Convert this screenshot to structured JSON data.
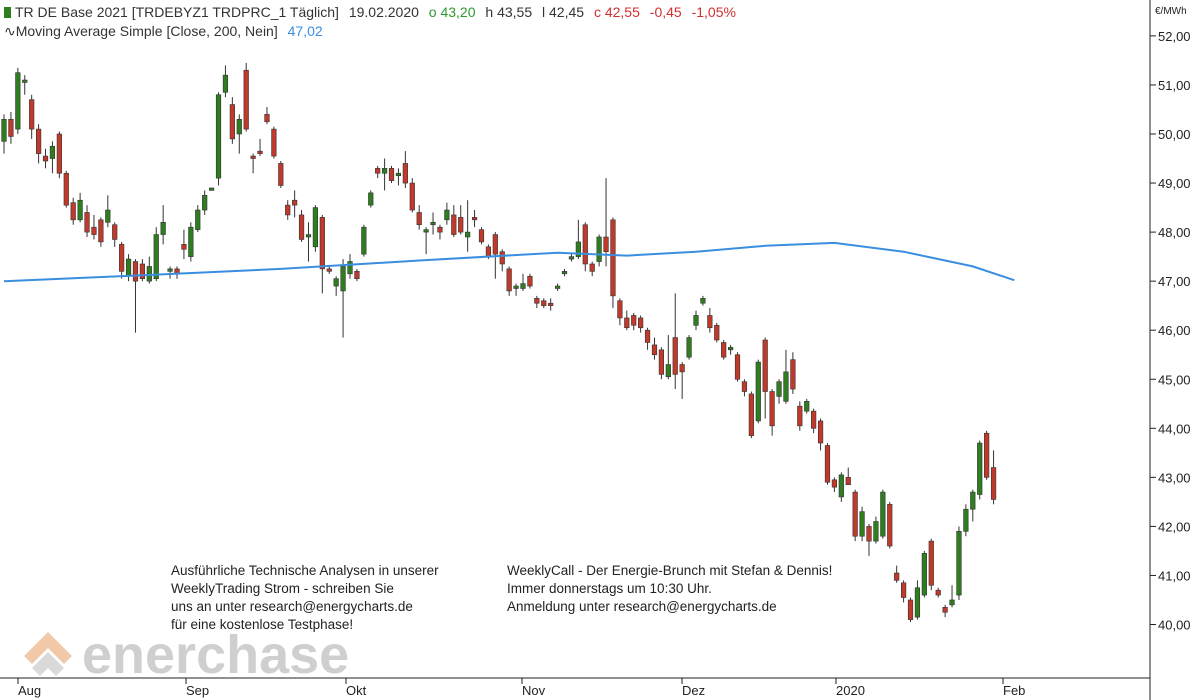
{
  "header": {
    "symbol_label": "TR DE Base 2021 [TRDEBYZ1 TRDPRC_1 Täglich]",
    "date": "19.02.2020",
    "open": "o 43,20",
    "high": "h 43,55",
    "low": "l 42,45",
    "close": "c 42,55",
    "change": "-0,45",
    "change_pct": "-1,05%",
    "ma_label": "Moving Average Simple  [Close, 200, Nein]",
    "ma_value": "47,02"
  },
  "colors": {
    "up": "#2e7d1f",
    "down": "#c0392b",
    "ma": "#3a8ee0",
    "open": "#2e9a2e",
    "neg": "#d03030"
  },
  "annotations": {
    "left": [
      "Ausführliche Technische Analysen in unserer",
      "WeeklyTrading Strom - schreiben Sie",
      "uns an unter research@energycharts.de",
      "für eine kostenlose Testphase!"
    ],
    "right": [
      "WeeklyCall - Der Energie-Brunch mit Stefan & Dennis!",
      "Immer donnerstags um 10:30 Uhr.",
      "Anmeldung unter research@energycharts.de"
    ]
  },
  "logo": {
    "text": "enerchase"
  },
  "chart_data": {
    "type": "candlestick",
    "unit": "€/MWh",
    "ylim": [
      39.3,
      52.4
    ],
    "y_ticks": [
      "40,00",
      "41,00",
      "42,00",
      "43,00",
      "44,00",
      "45,00",
      "46,00",
      "47,00",
      "48,00",
      "49,00",
      "50,00",
      "51,00",
      "52,00"
    ],
    "x_ticks": [
      "Aug",
      "Sep",
      "Okt",
      "Nov",
      "Dez",
      "2020",
      "Feb"
    ],
    "candles": [
      {
        "o": 49.85,
        "h": 50.4,
        "l": 49.6,
        "c": 50.3
      },
      {
        "o": 50.3,
        "h": 50.45,
        "l": 49.8,
        "c": 49.95
      },
      {
        "o": 50.1,
        "h": 51.35,
        "l": 50.0,
        "c": 51.25
      },
      {
        "o": 51.05,
        "h": 51.2,
        "l": 50.8,
        "c": 51.1
      },
      {
        "o": 50.7,
        "h": 50.8,
        "l": 49.9,
        "c": 50.1
      },
      {
        "o": 50.1,
        "h": 50.2,
        "l": 49.4,
        "c": 49.6
      },
      {
        "o": 49.55,
        "h": 49.7,
        "l": 49.3,
        "c": 49.45
      },
      {
        "o": 49.5,
        "h": 49.85,
        "l": 49.2,
        "c": 49.75
      },
      {
        "o": 50.0,
        "h": 50.05,
        "l": 49.1,
        "c": 49.2
      },
      {
        "o": 49.2,
        "h": 49.25,
        "l": 48.5,
        "c": 48.55
      },
      {
        "o": 48.6,
        "h": 48.7,
        "l": 48.15,
        "c": 48.25
      },
      {
        "o": 48.25,
        "h": 48.8,
        "l": 48.2,
        "c": 48.65
      },
      {
        "o": 48.4,
        "h": 48.55,
        "l": 47.9,
        "c": 48.0
      },
      {
        "o": 48.1,
        "h": 48.35,
        "l": 47.85,
        "c": 47.95
      },
      {
        "o": 48.25,
        "h": 48.3,
        "l": 47.7,
        "c": 47.8
      },
      {
        "o": 48.2,
        "h": 48.75,
        "l": 48.1,
        "c": 48.45
      },
      {
        "o": 48.15,
        "h": 48.2,
        "l": 47.7,
        "c": 47.85
      },
      {
        "o": 47.75,
        "h": 47.8,
        "l": 47.05,
        "c": 47.2
      },
      {
        "o": 47.1,
        "h": 47.55,
        "l": 47.0,
        "c": 47.45
      },
      {
        "o": 47.4,
        "h": 47.45,
        "l": 45.95,
        "c": 47.0
      },
      {
        "o": 47.35,
        "h": 47.45,
        "l": 47.0,
        "c": 47.05
      },
      {
        "o": 47.0,
        "h": 47.5,
        "l": 46.95,
        "c": 47.3
      },
      {
        "o": 47.05,
        "h": 48.1,
        "l": 47.0,
        "c": 47.95
      },
      {
        "o": 47.95,
        "h": 48.55,
        "l": 47.75,
        "c": 48.2
      },
      {
        "o": 47.2,
        "h": 47.3,
        "l": 47.05,
        "c": 47.25
      },
      {
        "o": 47.25,
        "h": 47.3,
        "l": 47.05,
        "c": 47.15
      },
      {
        "o": 47.75,
        "h": 48.05,
        "l": 47.45,
        "c": 47.65
      },
      {
        "o": 47.5,
        "h": 48.2,
        "l": 47.4,
        "c": 48.1
      },
      {
        "o": 48.05,
        "h": 48.55,
        "l": 48.0,
        "c": 48.45
      },
      {
        "o": 48.45,
        "h": 48.85,
        "l": 48.35,
        "c": 48.75
      },
      {
        "o": 48.85,
        "h": 48.9,
        "l": 48.85,
        "c": 48.9
      },
      {
        "o": 49.1,
        "h": 50.85,
        "l": 48.95,
        "c": 50.8
      },
      {
        "o": 50.85,
        "h": 51.4,
        "l": 50.75,
        "c": 51.2
      },
      {
        "o": 50.6,
        "h": 50.75,
        "l": 49.8,
        "c": 49.9
      },
      {
        "o": 50.0,
        "h": 50.4,
        "l": 49.6,
        "c": 50.3
      },
      {
        "o": 51.3,
        "h": 51.45,
        "l": 50.05,
        "c": 50.1
      },
      {
        "o": 49.55,
        "h": 49.6,
        "l": 49.2,
        "c": 49.5
      },
      {
        "o": 49.65,
        "h": 49.9,
        "l": 49.55,
        "c": 49.6
      },
      {
        "o": 50.4,
        "h": 50.55,
        "l": 50.2,
        "c": 50.25
      },
      {
        "o": 50.1,
        "h": 50.15,
        "l": 49.5,
        "c": 49.55
      },
      {
        "o": 49.4,
        "h": 49.45,
        "l": 48.9,
        "c": 48.95
      },
      {
        "o": 48.55,
        "h": 48.65,
        "l": 48.25,
        "c": 48.35
      },
      {
        "o": 48.65,
        "h": 48.85,
        "l": 48.3,
        "c": 48.55
      },
      {
        "o": 48.35,
        "h": 48.45,
        "l": 47.8,
        "c": 47.85
      },
      {
        "o": 47.9,
        "h": 48.2,
        "l": 47.4,
        "c": 47.95
      },
      {
        "o": 47.7,
        "h": 48.55,
        "l": 47.6,
        "c": 48.5
      },
      {
        "o": 48.3,
        "h": 48.35,
        "l": 46.75,
        "c": 47.25
      },
      {
        "o": 47.25,
        "h": 47.3,
        "l": 47.15,
        "c": 47.2
      },
      {
        "o": 46.9,
        "h": 47.1,
        "l": 46.7,
        "c": 47.05
      },
      {
        "o": 46.8,
        "h": 47.45,
        "l": 45.85,
        "c": 47.3
      },
      {
        "o": 47.15,
        "h": 47.55,
        "l": 47.05,
        "c": 47.4
      },
      {
        "o": 47.2,
        "h": 47.25,
        "l": 47.0,
        "c": 47.05
      },
      {
        "o": 47.55,
        "h": 48.15,
        "l": 47.5,
        "c": 48.1
      },
      {
        "o": 48.55,
        "h": 48.85,
        "l": 48.5,
        "c": 48.8
      },
      {
        "o": 49.3,
        "h": 49.35,
        "l": 49.1,
        "c": 49.2
      },
      {
        "o": 49.2,
        "h": 49.5,
        "l": 48.85,
        "c": 49.3
      },
      {
        "o": 49.3,
        "h": 49.35,
        "l": 49.0,
        "c": 49.05
      },
      {
        "o": 49.15,
        "h": 49.3,
        "l": 48.95,
        "c": 49.2
      },
      {
        "o": 49.4,
        "h": 49.65,
        "l": 48.9,
        "c": 49.0
      },
      {
        "o": 49.0,
        "h": 49.1,
        "l": 48.4,
        "c": 48.45
      },
      {
        "o": 48.4,
        "h": 48.55,
        "l": 48.05,
        "c": 48.15
      },
      {
        "o": 48.0,
        "h": 48.1,
        "l": 47.55,
        "c": 48.05
      },
      {
        "o": 48.15,
        "h": 48.4,
        "l": 47.95,
        "c": 48.2
      },
      {
        "o": 48.1,
        "h": 48.15,
        "l": 47.85,
        "c": 48.0
      },
      {
        "o": 48.25,
        "h": 48.6,
        "l": 48.15,
        "c": 48.45
      },
      {
        "o": 48.35,
        "h": 48.55,
        "l": 47.9,
        "c": 47.95
      },
      {
        "o": 48.3,
        "h": 48.55,
        "l": 47.95,
        "c": 48.0
      },
      {
        "o": 47.9,
        "h": 48.65,
        "l": 47.6,
        "c": 48.0
      },
      {
        "o": 48.3,
        "h": 48.45,
        "l": 48.1,
        "c": 48.25
      },
      {
        "o": 48.05,
        "h": 48.1,
        "l": 47.75,
        "c": 47.8
      },
      {
        "o": 47.7,
        "h": 47.75,
        "l": 47.45,
        "c": 47.5
      },
      {
        "o": 47.95,
        "h": 48.0,
        "l": 47.05,
        "c": 47.55
      },
      {
        "o": 47.6,
        "h": 47.65,
        "l": 47.2,
        "c": 47.35
      },
      {
        "o": 47.25,
        "h": 47.3,
        "l": 46.7,
        "c": 46.8
      },
      {
        "o": 46.85,
        "h": 46.95,
        "l": 46.7,
        "c": 46.9
      },
      {
        "o": 46.85,
        "h": 47.15,
        "l": 46.8,
        "c": 46.95
      },
      {
        "o": 47.1,
        "h": 47.15,
        "l": 46.85,
        "c": 46.9
      },
      {
        "o": 46.65,
        "h": 46.7,
        "l": 46.45,
        "c": 46.55
      },
      {
        "o": 46.6,
        "h": 46.65,
        "l": 46.45,
        "c": 46.5
      },
      {
        "o": 46.55,
        "h": 46.65,
        "l": 46.4,
        "c": 46.5
      },
      {
        "o": 46.85,
        "h": 46.95,
        "l": 46.8,
        "c": 46.9
      },
      {
        "o": 47.15,
        "h": 47.25,
        "l": 47.1,
        "c": 47.2
      },
      {
        "o": 47.45,
        "h": 47.55,
        "l": 47.4,
        "c": 47.5
      },
      {
        "o": 47.5,
        "h": 48.25,
        "l": 47.45,
        "c": 47.8
      },
      {
        "o": 48.15,
        "h": 48.2,
        "l": 47.2,
        "c": 47.35
      },
      {
        "o": 47.35,
        "h": 47.4,
        "l": 47.1,
        "c": 47.2
      },
      {
        "o": 47.4,
        "h": 47.95,
        "l": 47.3,
        "c": 47.9
      },
      {
        "o": 47.9,
        "h": 49.1,
        "l": 47.3,
        "c": 47.6
      },
      {
        "o": 48.25,
        "h": 48.3,
        "l": 46.45,
        "c": 46.7
      },
      {
        "o": 46.6,
        "h": 46.65,
        "l": 46.1,
        "c": 46.25
      },
      {
        "o": 46.25,
        "h": 46.4,
        "l": 46.0,
        "c": 46.05
      },
      {
        "o": 46.3,
        "h": 46.35,
        "l": 46.0,
        "c": 46.1
      },
      {
        "o": 46.25,
        "h": 46.3,
        "l": 45.95,
        "c": 46.05
      },
      {
        "o": 46.0,
        "h": 46.05,
        "l": 45.6,
        "c": 45.75
      },
      {
        "o": 45.7,
        "h": 45.85,
        "l": 45.4,
        "c": 45.5
      },
      {
        "o": 45.6,
        "h": 45.65,
        "l": 45.0,
        "c": 45.1
      },
      {
        "o": 45.05,
        "h": 45.9,
        "l": 45.0,
        "c": 45.3
      },
      {
        "o": 45.85,
        "h": 46.75,
        "l": 44.8,
        "c": 45.1
      },
      {
        "o": 45.3,
        "h": 45.35,
        "l": 44.6,
        "c": 45.15
      },
      {
        "o": 45.45,
        "h": 45.9,
        "l": 45.4,
        "c": 45.85
      },
      {
        "o": 46.1,
        "h": 46.4,
        "l": 46.0,
        "c": 46.3
      },
      {
        "o": 46.55,
        "h": 46.7,
        "l": 46.5,
        "c": 46.65
      },
      {
        "o": 46.3,
        "h": 46.45,
        "l": 45.95,
        "c": 46.05
      },
      {
        "o": 46.1,
        "h": 46.15,
        "l": 45.75,
        "c": 45.8
      },
      {
        "o": 45.75,
        "h": 45.8,
        "l": 45.4,
        "c": 45.45
      },
      {
        "o": 45.6,
        "h": 45.7,
        "l": 45.5,
        "c": 45.65
      },
      {
        "o": 45.5,
        "h": 45.55,
        "l": 44.95,
        "c": 45.0
      },
      {
        "o": 44.95,
        "h": 45.0,
        "l": 44.65,
        "c": 44.75
      },
      {
        "o": 44.7,
        "h": 44.75,
        "l": 43.8,
        "c": 43.85
      },
      {
        "o": 44.15,
        "h": 45.4,
        "l": 44.1,
        "c": 45.35
      },
      {
        "o": 45.8,
        "h": 45.85,
        "l": 44.2,
        "c": 44.75
      },
      {
        "o": 44.75,
        "h": 44.8,
        "l": 43.85,
        "c": 44.05
      },
      {
        "o": 44.65,
        "h": 45.0,
        "l": 44.5,
        "c": 44.95
      },
      {
        "o": 44.55,
        "h": 45.6,
        "l": 44.5,
        "c": 45.15
      },
      {
        "o": 45.4,
        "h": 45.55,
        "l": 44.7,
        "c": 44.8
      },
      {
        "o": 44.45,
        "h": 44.55,
        "l": 43.95,
        "c": 44.05
      },
      {
        "o": 44.35,
        "h": 44.6,
        "l": 44.3,
        "c": 44.55
      },
      {
        "o": 44.35,
        "h": 44.4,
        "l": 43.9,
        "c": 44.0
      },
      {
        "o": 44.15,
        "h": 44.2,
        "l": 43.55,
        "c": 43.7
      },
      {
        "o": 43.65,
        "h": 43.7,
        "l": 42.85,
        "c": 42.9
      },
      {
        "o": 42.95,
        "h": 43.0,
        "l": 42.7,
        "c": 42.8
      },
      {
        "o": 42.6,
        "h": 43.1,
        "l": 42.5,
        "c": 43.05
      },
      {
        "o": 43.0,
        "h": 43.2,
        "l": 42.85,
        "c": 42.85
      },
      {
        "o": 42.7,
        "h": 42.75,
        "l": 41.7,
        "c": 41.8
      },
      {
        "o": 41.8,
        "h": 42.4,
        "l": 41.7,
        "c": 42.3
      },
      {
        "o": 42.0,
        "h": 42.05,
        "l": 41.4,
        "c": 41.7
      },
      {
        "o": 41.7,
        "h": 42.2,
        "l": 41.65,
        "c": 42.1
      },
      {
        "o": 41.8,
        "h": 42.75,
        "l": 41.75,
        "c": 42.7
      },
      {
        "o": 42.45,
        "h": 42.5,
        "l": 41.55,
        "c": 41.6
      },
      {
        "o": 41.05,
        "h": 41.2,
        "l": 40.85,
        "c": 40.9
      },
      {
        "o": 40.85,
        "h": 40.9,
        "l": 40.45,
        "c": 40.55
      },
      {
        "o": 40.5,
        "h": 40.55,
        "l": 40.05,
        "c": 40.1
      },
      {
        "o": 40.15,
        "h": 40.9,
        "l": 40.1,
        "c": 40.75
      },
      {
        "o": 40.6,
        "h": 41.5,
        "l": 40.55,
        "c": 41.45
      },
      {
        "o": 41.7,
        "h": 41.75,
        "l": 40.7,
        "c": 40.8
      },
      {
        "o": 40.7,
        "h": 40.75,
        "l": 40.55,
        "c": 40.6
      },
      {
        "o": 40.35,
        "h": 40.4,
        "l": 40.15,
        "c": 40.25
      },
      {
        "o": 40.4,
        "h": 40.8,
        "l": 40.35,
        "c": 40.5
      },
      {
        "o": 40.6,
        "h": 42.0,
        "l": 40.5,
        "c": 41.9
      },
      {
        "o": 41.9,
        "h": 42.45,
        "l": 41.8,
        "c": 42.35
      },
      {
        "o": 42.35,
        "h": 42.75,
        "l": 42.1,
        "c": 42.7
      },
      {
        "o": 42.65,
        "h": 43.75,
        "l": 42.55,
        "c": 43.7
      },
      {
        "o": 43.9,
        "h": 43.95,
        "l": 42.95,
        "c": 43.0
      },
      {
        "o": 43.2,
        "h": 43.55,
        "l": 42.45,
        "c": 42.55
      }
    ],
    "moving_average": {
      "name": "Moving Average Simple",
      "x": [
        0,
        20,
        40,
        60,
        80,
        90,
        100,
        110,
        120,
        130,
        140,
        146
      ],
      "y": [
        47.0,
        47.12,
        47.25,
        47.42,
        47.58,
        47.52,
        47.6,
        47.72,
        47.78,
        47.6,
        47.3,
        47.02
      ]
    }
  }
}
